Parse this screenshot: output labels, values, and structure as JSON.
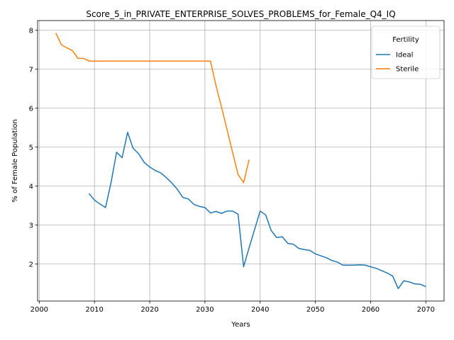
{
  "chart_data": {
    "type": "line",
    "title": "Score_5_in_PRIVATE_ENTERPRISE_SOLVES_PROBLEMS_for_Female_Q4_IQ",
    "xlabel": "Years",
    "ylabel": "% of Female Population",
    "xlim": [
      1999.7,
      2073.3
    ],
    "ylim": [
      1.05,
      8.25
    ],
    "xticks": [
      2000,
      2010,
      2020,
      2030,
      2040,
      2050,
      2060,
      2070
    ],
    "yticks": [
      2,
      3,
      4,
      5,
      6,
      7,
      8
    ],
    "grid": true,
    "legend": {
      "title": "Fertility",
      "placement": "top-right"
    },
    "series": [
      {
        "name": "Ideal",
        "color": "#1f77b4",
        "x": [
          2009,
          2010,
          2011,
          2012,
          2013,
          2014,
          2015,
          2016,
          2017,
          2018,
          2019,
          2020,
          2021,
          2022,
          2023,
          2024,
          2025,
          2026,
          2027,
          2028,
          2029,
          2030,
          2031,
          2032,
          2033,
          2034,
          2035,
          2036,
          2037,
          2038,
          2039,
          2040,
          2041,
          2042,
          2043,
          2044,
          2045,
          2046,
          2047,
          2048,
          2049,
          2050,
          2051,
          2052,
          2053,
          2054,
          2055,
          2056,
          2057,
          2058,
          2059,
          2060,
          2061,
          2062,
          2063,
          2064,
          2065,
          2066,
          2067,
          2068,
          2069,
          2070
        ],
        "y": [
          3.81,
          3.64,
          3.54,
          3.45,
          4.09,
          4.87,
          4.73,
          5.38,
          4.97,
          4.83,
          4.61,
          4.49,
          4.4,
          4.34,
          4.22,
          4.08,
          3.92,
          3.71,
          3.67,
          3.53,
          3.48,
          3.45,
          3.31,
          3.35,
          3.3,
          3.36,
          3.36,
          3.28,
          1.93,
          2.42,
          2.89,
          3.36,
          3.26,
          2.86,
          2.68,
          2.7,
          2.53,
          2.51,
          2.4,
          2.37,
          2.35,
          2.26,
          2.21,
          2.16,
          2.09,
          2.05,
          1.97,
          1.97,
          1.97,
          1.98,
          1.97,
          1.93,
          1.89,
          1.83,
          1.77,
          1.69,
          1.37,
          1.57,
          1.54,
          1.49,
          1.48,
          1.42
        ]
      },
      {
        "name": "Sterile",
        "color": "#ff7f0e",
        "x": [
          2003,
          2004,
          2005,
          2006,
          2007,
          2008,
          2009,
          2010,
          2011,
          2012,
          2013,
          2014,
          2015,
          2016,
          2017,
          2018,
          2019,
          2020,
          2021,
          2022,
          2023,
          2024,
          2025,
          2026,
          2027,
          2028,
          2029,
          2030,
          2031,
          2032,
          2033,
          2034,
          2035,
          2036,
          2037,
          2038
        ],
        "y": [
          7.93,
          7.63,
          7.55,
          7.48,
          7.28,
          7.28,
          7.21,
          7.21,
          7.21,
          7.21,
          7.21,
          7.21,
          7.21,
          7.21,
          7.21,
          7.21,
          7.21,
          7.21,
          7.21,
          7.21,
          7.21,
          7.21,
          7.21,
          7.21,
          7.21,
          7.21,
          7.21,
          7.21,
          7.21,
          6.58,
          6.03,
          5.45,
          4.87,
          4.3,
          4.09,
          4.68
        ]
      }
    ]
  }
}
